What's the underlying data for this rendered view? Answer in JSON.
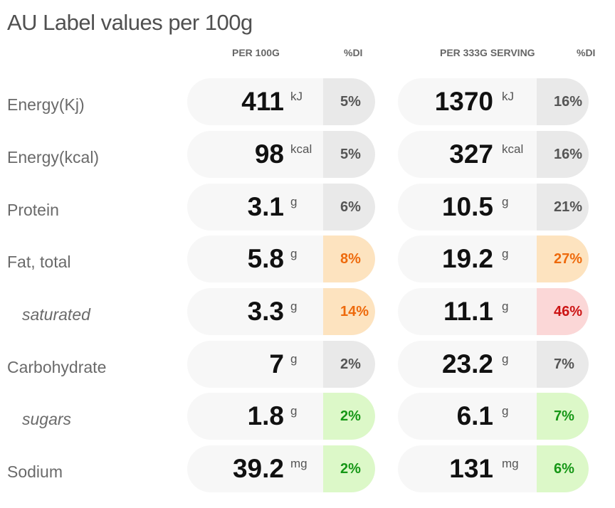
{
  "title": "AU Label values per 100g",
  "headers": {
    "per_100g": "PER 100G",
    "di_1": "%DI",
    "per_serving": "PER 333G SERVING",
    "di_2": "%DI"
  },
  "rows": [
    {
      "label": "Energy(Kj)",
      "sub": false,
      "v1": "411",
      "u1": "kJ",
      "d1": "5%",
      "c1": "grey",
      "v2": "1370",
      "u2": "kJ",
      "d2": "16%",
      "c2": "grey"
    },
    {
      "label": "Energy(kcal)",
      "sub": false,
      "v1": "98",
      "u1": "kcal",
      "d1": "5%",
      "c1": "grey",
      "v2": "327",
      "u2": "kcal",
      "d2": "16%",
      "c2": "grey"
    },
    {
      "label": "Protein",
      "sub": false,
      "v1": "3.1",
      "u1": "g",
      "d1": "6%",
      "c1": "grey",
      "v2": "10.5",
      "u2": "g",
      "d2": "21%",
      "c2": "grey"
    },
    {
      "label": "Fat, total",
      "sub": false,
      "v1": "5.8",
      "u1": "g",
      "d1": "8%",
      "c1": "orange",
      "v2": "19.2",
      "u2": "g",
      "d2": "27%",
      "c2": "orange"
    },
    {
      "label": "saturated",
      "sub": true,
      "v1": "3.3",
      "u1": "g",
      "d1": "14%",
      "c1": "orange",
      "v2": "11.1",
      "u2": "g",
      "d2": "46%",
      "c2": "red"
    },
    {
      "label": "Carbohydrate",
      "sub": false,
      "v1": "7",
      "u1": "g",
      "d1": "2%",
      "c1": "grey",
      "v2": "23.2",
      "u2": "g",
      "d2": "7%",
      "c2": "grey"
    },
    {
      "label": "sugars",
      "sub": true,
      "v1": "1.8",
      "u1": "g",
      "d1": "2%",
      "c1": "green",
      "v2": "6.1",
      "u2": "g",
      "d2": "7%",
      "c2": "green"
    },
    {
      "label": "Sodium",
      "sub": false,
      "v1": "39.2",
      "u1": "mg",
      "d1": "2%",
      "c1": "green",
      "v2": "131",
      "u2": "mg",
      "d2": "6%",
      "c2": "green"
    }
  ],
  "colors": {
    "grey": "#e9e9e9",
    "orange": "#fde3bf",
    "red": "#fbd7d7",
    "green": "#dcf8c8"
  }
}
